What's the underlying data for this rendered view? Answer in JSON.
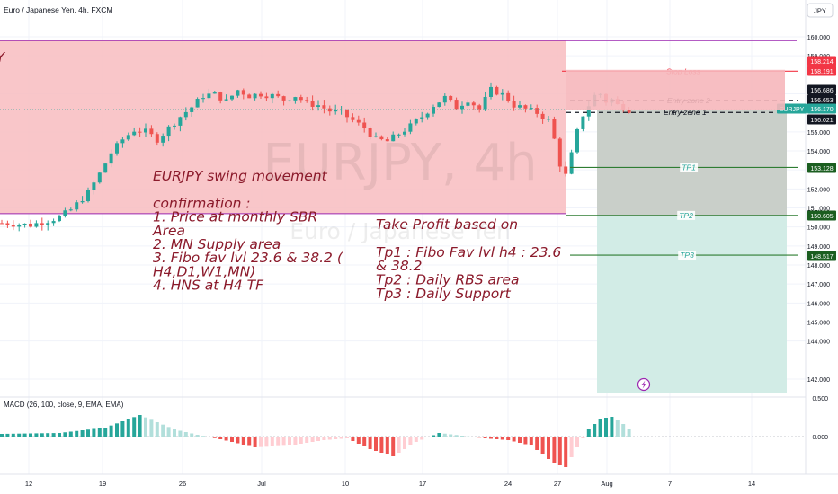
{
  "header": {
    "symbol_title": "Euro / Japanese Yen, 4h, FXCM",
    "currency_badge": "JPY"
  },
  "watermark": {
    "big": "EURJPY, 4h",
    "small": "Euro / Japanese Yen"
  },
  "left_edge_label": "Y",
  "colors": {
    "up": "#26a69a",
    "down": "#ef5350",
    "supply_zone": "#f8bcbf",
    "zone_border": "#9c27b0",
    "stop_loss": "#f23645",
    "take_profit": "#2e7d32",
    "annotation": "#8b1a2b",
    "target_box_top": "#c9cfc9",
    "target_box_bottom": "#d2ece6"
  },
  "annotations": {
    "left": [
      "EURJPY swing movement",
      "",
      "confirmation :",
      "1. Price at monthly SBR",
      "Area",
      "2. MN Supply area",
      "3. Fibo fav lvl 23.6 & 38.2 (",
      "H4,D1,W1,MN)",
      "4. HNS at H4 TF"
    ],
    "right": [
      "Take Profit based on",
      "",
      "Tp1 : Fibo Fav lvl h4 : 23.6",
      "& 38.2",
      "Tp2 : Daily RBS area",
      "Tp3 : Daily Support"
    ]
  },
  "chart_data": {
    "type": "candlestick",
    "symbol": "EURJPY",
    "timeframe": "4h",
    "exchange": "FXCM",
    "ylim": [
      141.5,
      160.6
    ],
    "y_ticks": [
      "160.000",
      "159.000",
      "157.000",
      "155.000",
      "154.000",
      "153.000",
      "152.000",
      "151.000",
      "150.000",
      "149.000",
      "148.000",
      "147.000",
      "146.000",
      "145.000",
      "144.000",
      "142.000"
    ],
    "x_ticks": [
      "12",
      "19",
      "26",
      "Jul",
      "10",
      "17",
      "24",
      "27",
      "Aug",
      "7",
      "14"
    ],
    "supply_zone": [
      150.7,
      159.8
    ],
    "levels": [
      {
        "label": "Stop Loss",
        "price": 158.191,
        "badge": "158.191"
      },
      {
        "label": "Entry zone 2",
        "price": 156.653,
        "badge": "156.653"
      },
      {
        "label": "Entry zone 1",
        "price": 156.021,
        "badge": "156.021"
      },
      {
        "label": "TP1",
        "price": 153.128,
        "badge": "153.128"
      },
      {
        "label": "TP2",
        "price": 150.605,
        "badge": "150.605"
      },
      {
        "label": "TP3",
        "price": 148.517,
        "badge": "148.517"
      }
    ],
    "price_badges": [
      {
        "text": "158.214",
        "kind": "sl"
      },
      {
        "text": "158.191",
        "kind": "sl"
      },
      {
        "text": "156.686",
        "kind": "dark"
      },
      {
        "text": "156.653",
        "kind": "dark"
      },
      {
        "text": "EURJPY",
        "kind": "symbol"
      },
      {
        "text": "156.170",
        "kind": "symbol"
      },
      {
        "text": "156.021",
        "kind": "dark"
      },
      {
        "text": "153.128",
        "kind": "tp"
      },
      {
        "text": "150.605",
        "kind": "tp"
      },
      {
        "text": "148.517",
        "kind": "tp"
      }
    ],
    "last_price": 156.17,
    "macd": {
      "label": "MACD (26, 100, close, 9, EMA, EMA)",
      "ticks": [
        "0.500",
        "0.000"
      ]
    },
    "price_path": [
      [
        0,
        150.2
      ],
      [
        5,
        150.1
      ],
      [
        10,
        150.5
      ],
      [
        12,
        150.9
      ],
      [
        15,
        151.8
      ],
      [
        17,
        152.8
      ],
      [
        19,
        153.9
      ],
      [
        21,
        154.6
      ],
      [
        23,
        155.1
      ],
      [
        25,
        155.0
      ],
      [
        27,
        154.6
      ],
      [
        29,
        155.2
      ],
      [
        31,
        155.8
      ],
      [
        33,
        156.3
      ],
      [
        35,
        156.9
      ],
      [
        37,
        157.0
      ],
      [
        39,
        156.6
      ],
      [
        41,
        157.2
      ],
      [
        43,
        156.9
      ],
      [
        45,
        157.0
      ],
      [
        47,
        156.9
      ],
      [
        49,
        156.7
      ],
      [
        51,
        156.9
      ],
      [
        53,
        156.5
      ],
      [
        55,
        156.4
      ],
      [
        57,
        156.1
      ],
      [
        59,
        156.0
      ],
      [
        61,
        155.6
      ],
      [
        63,
        155.2
      ],
      [
        65,
        154.6
      ],
      [
        67,
        154.5
      ],
      [
        69,
        154.9
      ],
      [
        71,
        155.3
      ],
      [
        73,
        155.8
      ],
      [
        75,
        156.4
      ],
      [
        77,
        156.8
      ],
      [
        79,
        156.3
      ],
      [
        81,
        156.7
      ],
      [
        83,
        156.2
      ],
      [
        85,
        157.2
      ],
      [
        87,
        157.0
      ],
      [
        89,
        156.4
      ],
      [
        91,
        156.2
      ],
      [
        93,
        156.0
      ],
      [
        95,
        155.6
      ],
      [
        96,
        154.6
      ],
      [
        97,
        153.3
      ],
      [
        98,
        152.7
      ],
      [
        99,
        153.8
      ],
      [
        100,
        155.0
      ],
      [
        101,
        155.9
      ],
      [
        102,
        156.4
      ],
      [
        103,
        156.9
      ],
      [
        104,
        157.0
      ],
      [
        105,
        156.6
      ],
      [
        106,
        156.7
      ],
      [
        107,
        156.4
      ],
      [
        108,
        156.3
      ],
      [
        109,
        156.17
      ]
    ]
  }
}
